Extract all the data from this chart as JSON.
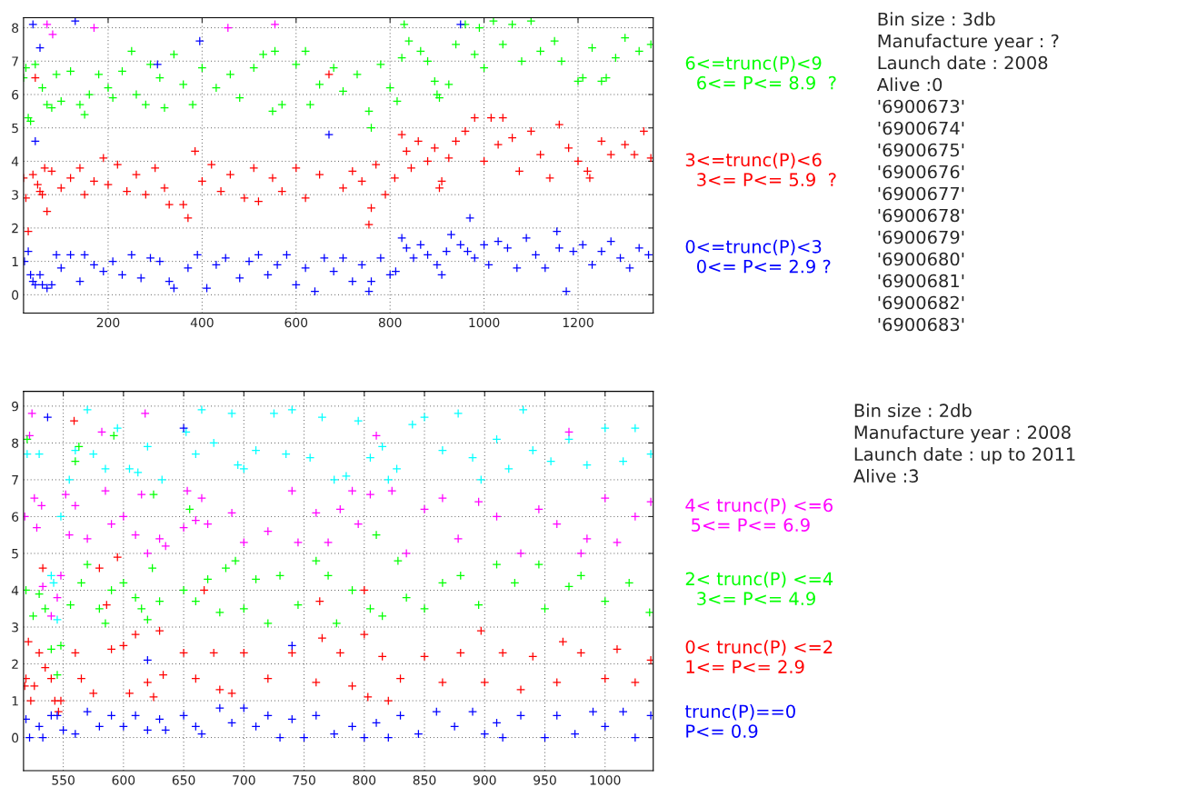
{
  "chart_data": [
    {
      "type": "scatter",
      "xlim": [
        20,
        1360
      ],
      "ylim": [
        -0.55,
        8.3
      ],
      "xticks": [
        200,
        400,
        600,
        800,
        1000,
        1200
      ],
      "yticks": [
        0,
        1,
        2,
        3,
        4,
        5,
        6,
        7,
        8
      ],
      "grid": true,
      "legend": false,
      "marker": "cross",
      "annotations": [
        "Bin size : 3db",
        "Manufacture year : ?",
        "Launch date : 2008",
        "Alive :0",
        "'6900673'",
        "'6900674'",
        "'6900675'",
        "'6900676'",
        "'6900677'",
        "'6900678'",
        "'6900679'",
        "'6900680'",
        "'6900681'",
        "'6900682'",
        "'6900683'"
      ],
      "series": [
        {
          "name": "6<=trunc(P)<9\n  6<= P<= 8.9  ?",
          "color": "#00ff00",
          "x": [
            20,
            25,
            30,
            35,
            45,
            60,
            70,
            80,
            90,
            100,
            120,
            140,
            150,
            160,
            180,
            200,
            210,
            230,
            250,
            260,
            280,
            290,
            310,
            320,
            340,
            360,
            380,
            400,
            430,
            460,
            480,
            510,
            530,
            550,
            555,
            570,
            600,
            620,
            630,
            650,
            680,
            700,
            730,
            755,
            760,
            780,
            800,
            815,
            825,
            830,
            840,
            865,
            880,
            895,
            900,
            905,
            925,
            940,
            960,
            980,
            990,
            1000,
            1020,
            1040,
            1060,
            1080,
            1100,
            1120,
            1150,
            1165,
            1200,
            1210,
            1230,
            1250,
            1260,
            1280,
            1300,
            1330,
            1355
          ],
          "values": [
            6.5,
            6.8,
            5.3,
            5.2,
            6.9,
            6.2,
            5.7,
            5.6,
            6.6,
            5.8,
            6.7,
            5.7,
            5.4,
            6.0,
            6.6,
            6.2,
            5.9,
            6.7,
            7.3,
            6.0,
            5.7,
            6.9,
            6.5,
            5.6,
            7.2,
            6.3,
            5.7,
            6.8,
            6.2,
            6.6,
            5.9,
            6.8,
            7.2,
            5.5,
            7.3,
            5.7,
            6.9,
            7.3,
            5.7,
            6.3,
            6.8,
            6.1,
            6.6,
            5.5,
            5.0,
            6.9,
            6.2,
            5.8,
            7.1,
            8.1,
            7.6,
            7.3,
            7.0,
            6.4,
            6.0,
            5.9,
            6.3,
            7.5,
            8.1,
            7.2,
            8.0,
            6.8,
            8.2,
            7.5,
            8.1,
            7.0,
            8.2,
            7.3,
            7.6,
            7.0,
            6.4,
            6.5,
            7.4,
            6.4,
            6.5,
            7.1,
            7.7,
            7.3,
            7.5
          ]
        },
        {
          "name": "3<=trunc(P)<6\n  3<= P<= 5.9  ?",
          "color": "#ff0000",
          "x": [
            20,
            25,
            30,
            40,
            45,
            50,
            55,
            60,
            65,
            70,
            80,
            100,
            120,
            140,
            150,
            170,
            190,
            200,
            220,
            240,
            260,
            280,
            300,
            320,
            330,
            360,
            370,
            385,
            400,
            420,
            440,
            460,
            490,
            510,
            520,
            550,
            570,
            600,
            620,
            650,
            670,
            700,
            720,
            740,
            755,
            760,
            770,
            790,
            810,
            825,
            835,
            845,
            860,
            880,
            895,
            905,
            910,
            925,
            940,
            960,
            980,
            1000,
            1015,
            1030,
            1040,
            1060,
            1075,
            1100,
            1120,
            1140,
            1160,
            1180,
            1200,
            1220,
            1225,
            1250,
            1270,
            1300,
            1320,
            1340,
            1355
          ],
          "values": [
            3.5,
            2.9,
            1.9,
            3.6,
            6.5,
            3.3,
            3.1,
            3.0,
            3.8,
            2.5,
            3.7,
            3.2,
            3.5,
            3.8,
            3.0,
            3.4,
            4.1,
            3.3,
            3.9,
            3.1,
            3.6,
            3.0,
            3.8,
            3.2,
            2.7,
            2.7,
            2.3,
            4.3,
            3.4,
            3.9,
            3.1,
            3.6,
            2.9,
            3.8,
            2.8,
            3.5,
            3.1,
            3.8,
            2.9,
            3.6,
            6.6,
            3.2,
            3.7,
            3.4,
            2.1,
            2.6,
            3.9,
            3.0,
            3.5,
            4.8,
            4.3,
            3.8,
            4.6,
            4.0,
            4.4,
            3.2,
            3.4,
            4.1,
            4.6,
            4.9,
            5.3,
            4.0,
            5.3,
            4.5,
            5.3,
            4.7,
            3.7,
            4.9,
            4.2,
            3.5,
            5.1,
            4.4,
            4.0,
            3.7,
            3.5,
            4.6,
            4.2,
            4.5,
            4.2,
            4.9,
            4.1
          ]
        },
        {
          "name": "0<=trunc(P)<3\n  0<= P<= 2.9 ?",
          "color": "#0000ff",
          "x": [
            22,
            30,
            35,
            40,
            45,
            55,
            60,
            70,
            80,
            90,
            100,
            120,
            140,
            150,
            170,
            190,
            210,
            230,
            250,
            270,
            290,
            310,
            330,
            340,
            370,
            390,
            410,
            430,
            450,
            480,
            500,
            520,
            540,
            560,
            580,
            600,
            620,
            640,
            660,
            680,
            700,
            720,
            740,
            755,
            760,
            780,
            800,
            812,
            40,
            55,
            45,
            130,
            395,
            305,
            670,
            825,
            835,
            850,
            865,
            880,
            900,
            910,
            920,
            930,
            950,
            965,
            970,
            980,
            1000,
            1010,
            1030,
            1050,
            1070,
            1090,
            1110,
            1130,
            1155,
            1160,
            1175,
            1190,
            1210,
            1230,
            1250,
            1270,
            1290,
            1310,
            1330,
            1350,
            950
          ],
          "values": [
            1.0,
            1.3,
            0.6,
            0.4,
            0.3,
            0.6,
            0.3,
            0.2,
            0.3,
            1.2,
            0.8,
            1.2,
            0.4,
            1.2,
            0.9,
            0.7,
            1.0,
            0.6,
            1.2,
            0.5,
            1.1,
            1.0,
            0.4,
            0.2,
            0.8,
            1.2,
            0.2,
            0.9,
            1.1,
            0.5,
            1.0,
            1.2,
            0.6,
            0.9,
            1.2,
            0.3,
            0.8,
            0.1,
            1.1,
            0.7,
            1.1,
            0.4,
            0.9,
            0.1,
            0.4,
            1.1,
            0.6,
            0.7,
            8.1,
            7.4,
            4.6,
            8.2,
            7.6,
            6.9,
            4.8,
            1.7,
            1.4,
            1.1,
            1.5,
            1.2,
            0.9,
            0.6,
            1.3,
            1.8,
            1.5,
            1.3,
            2.3,
            1.1,
            1.5,
            0.9,
            1.6,
            1.4,
            0.8,
            1.7,
            1.2,
            0.8,
            1.9,
            1.4,
            0.1,
            1.3,
            1.5,
            0.9,
            1.3,
            1.6,
            1.1,
            0.8,
            1.4,
            1.2,
            8.1
          ]
        },
        {
          "color": "#ff00ff",
          "x": [
            70,
            82,
            170,
            455,
            555
          ],
          "values": [
            8.1,
            7.8,
            8.0,
            8.0,
            8.1
          ]
        }
      ]
    },
    {
      "type": "scatter",
      "xlim": [
        517,
        1040
      ],
      "ylim": [
        -0.9,
        9.4
      ],
      "xticks": [
        550,
        600,
        650,
        700,
        750,
        800,
        850,
        900,
        950,
        1000
      ],
      "yticks": [
        0,
        1,
        2,
        3,
        4,
        5,
        6,
        7,
        8,
        9
      ],
      "grid": true,
      "legend": false,
      "marker": "cross",
      "annotations": [
        "Bin size : 2db",
        "Manufacture year : 2008",
        "Launch date : up to 2011",
        "Alive :3"
      ],
      "series": [
        {
          "color": "#00ffff",
          "x": [
            520,
            530,
            540,
            542,
            545,
            548,
            555,
            560,
            570,
            575,
            585,
            595,
            605,
            612,
            620,
            632,
            652,
            660,
            665,
            675,
            690,
            695,
            700,
            710,
            725,
            735,
            740,
            755,
            765,
            775,
            785,
            795,
            805,
            815,
            820,
            827,
            840,
            850,
            865,
            878,
            890,
            897,
            910,
            920,
            932,
            940,
            955,
            970,
            985,
            1000,
            1015,
            1025,
            1038
          ],
          "values": [
            7.7,
            7.7,
            4.4,
            4.2,
            3.2,
            6.0,
            7.0,
            7.8,
            8.9,
            7.7,
            7.3,
            8.4,
            7.3,
            7.2,
            7.9,
            7.0,
            8.3,
            7.7,
            8.9,
            8.0,
            8.8,
            7.4,
            7.3,
            7.8,
            8.8,
            7.7,
            8.9,
            7.6,
            8.7,
            7.0,
            7.1,
            8.6,
            7.6,
            7.9,
            7.0,
            7.3,
            8.5,
            8.7,
            7.8,
            8.8,
            7.6,
            7.0,
            8.1,
            7.3,
            8.9,
            7.8,
            7.5,
            8.1,
            7.4,
            8.4,
            7.5,
            8.4,
            7.7
          ]
        },
        {
          "name": "4< trunc(P) <=6\n 5<= P<= 6.9",
          "color": "#ff00ff",
          "x": [
            518,
            522,
            524,
            526,
            528,
            532,
            533,
            540,
            545,
            548,
            552,
            555,
            560,
            570,
            582,
            585,
            590,
            600,
            610,
            615,
            618,
            620,
            630,
            635,
            650,
            653,
            660,
            665,
            670,
            690,
            700,
            720,
            740,
            745,
            760,
            770,
            780,
            790,
            795,
            805,
            810,
            823,
            835,
            850,
            865,
            878,
            895,
            910,
            930,
            945,
            960,
            970,
            980,
            985,
            1000,
            1010,
            1025,
            1038
          ],
          "values": [
            6.0,
            8.2,
            8.8,
            6.5,
            5.7,
            6.3,
            4.1,
            3.3,
            3.8,
            4.4,
            6.6,
            5.5,
            6.3,
            5.4,
            8.3,
            6.7,
            5.8,
            6.0,
            5.5,
            6.6,
            8.8,
            5.0,
            5.4,
            5.2,
            5.7,
            6.7,
            5.9,
            6.5,
            5.8,
            6.1,
            5.3,
            5.6,
            6.7,
            5.3,
            6.1,
            5.3,
            6.2,
            6.7,
            5.8,
            6.6,
            8.2,
            6.7,
            5.0,
            6.2,
            6.5,
            5.4,
            6.4,
            6.0,
            5.0,
            6.2,
            5.8,
            8.3,
            5.0,
            5.4,
            6.5,
            5.3,
            6.0,
            6.4
          ]
        },
        {
          "name": "2< trunc(P) <=4\n  3<= P<= 4.9",
          "color": "#00ff00",
          "x": [
            519,
            525,
            530,
            535,
            540,
            545,
            548,
            556,
            565,
            570,
            580,
            585,
            590,
            600,
            610,
            615,
            620,
            624,
            625,
            630,
            650,
            660,
            670,
            680,
            685,
            693,
            700,
            710,
            720,
            730,
            745,
            760,
            770,
            777,
            790,
            805,
            810,
            815,
            828,
            835,
            850,
            865,
            880,
            895,
            910,
            925,
            945,
            950,
            970,
            980,
            1000,
            1020,
            1037,
            520,
            560,
            592,
            655,
            563
          ],
          "values": [
            4.0,
            3.3,
            3.9,
            3.5,
            2.4,
            1.7,
            2.5,
            3.6,
            4.2,
            4.7,
            3.5,
            3.1,
            4.0,
            4.2,
            3.8,
            3.5,
            3.2,
            4.6,
            6.6,
            3.7,
            4.0,
            3.7,
            4.3,
            3.4,
            4.6,
            4.8,
            3.5,
            4.3,
            3.1,
            4.4,
            3.6,
            4.8,
            4.4,
            3.1,
            4.0,
            3.5,
            5.5,
            3.3,
            4.8,
            3.8,
            3.5,
            4.2,
            4.4,
            3.6,
            4.7,
            4.2,
            4.7,
            3.5,
            4.1,
            4.4,
            3.7,
            4.2,
            3.4,
            8.1,
            7.5,
            8.2,
            6.2,
            7.9
          ]
        },
        {
          "name": "0< trunc(P) <=2\n1<= P<= 2.9",
          "color": "#ff0000",
          "x": [
            518,
            519,
            521,
            523,
            526,
            530,
            535,
            540,
            543,
            546,
            548,
            533,
            559,
            560,
            565,
            575,
            580,
            586,
            590,
            595,
            600,
            605,
            610,
            620,
            625,
            630,
            633,
            650,
            660,
            675,
            680,
            690,
            700,
            720,
            740,
            760,
            765,
            780,
            790,
            800,
            803,
            815,
            820,
            830,
            850,
            865,
            880,
            897,
            900,
            915,
            930,
            940,
            960,
            965,
            980,
            1000,
            1010,
            1025,
            1038,
            667,
            800,
            763
          ],
          "values": [
            1.4,
            1.6,
            2.6,
            1.0,
            1.4,
            2.3,
            1.9,
            1.6,
            1.0,
            0.7,
            1.0,
            4.6,
            8.6,
            2.3,
            1.6,
            1.2,
            4.6,
            3.6,
            2.4,
            4.9,
            2.5,
            1.2,
            2.8,
            1.5,
            1.1,
            2.9,
            1.7,
            2.3,
            1.6,
            2.3,
            1.3,
            1.2,
            2.3,
            1.6,
            2.3,
            1.5,
            2.7,
            2.3,
            1.4,
            2.8,
            1.1,
            2.2,
            1.0,
            1.6,
            2.2,
            1.5,
            2.3,
            2.9,
            1.5,
            2.3,
            1.3,
            2.2,
            1.5,
            2.6,
            2.3,
            1.6,
            2.4,
            1.5,
            2.1,
            4.0,
            4.0,
            3.7
          ]
        },
        {
          "name": "trunc(P)==0\nP<= 0.9",
          "color": "#0000ff",
          "x": [
            519,
            522,
            530,
            533,
            540,
            545,
            550,
            560,
            570,
            580,
            590,
            600,
            610,
            620,
            630,
            635,
            650,
            660,
            665,
            680,
            690,
            700,
            710,
            720,
            730,
            740,
            750,
            760,
            775,
            790,
            800,
            810,
            820,
            830,
            845,
            860,
            875,
            890,
            900,
            910,
            915,
            930,
            950,
            960,
            975,
            990,
            1000,
            1015,
            1025,
            1038,
            537,
            650,
            740,
            620
          ],
          "values": [
            0.5,
            0.0,
            0.3,
            0.0,
            0.6,
            0.6,
            0.2,
            0.1,
            0.7,
            0.3,
            0.6,
            0.3,
            0.6,
            0.2,
            0.5,
            0.2,
            0.6,
            0.3,
            0.1,
            0.8,
            0.4,
            0.8,
            0.3,
            0.6,
            0.0,
            0.5,
            0.0,
            0.6,
            0.1,
            0.3,
            0.0,
            0.4,
            0.0,
            0.6,
            0.1,
            0.7,
            0.3,
            0.7,
            0.1,
            0.4,
            0.0,
            0.6,
            0.0,
            0.6,
            0.1,
            0.7,
            0.3,
            0.7,
            0.0,
            0.6,
            8.7,
            8.4,
            2.5,
            2.1
          ]
        }
      ]
    }
  ]
}
